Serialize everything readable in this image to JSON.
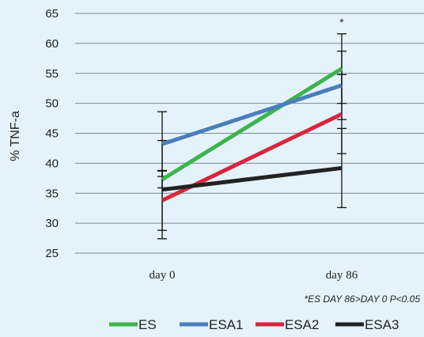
{
  "chart_data": {
    "type": "line",
    "title": "",
    "xlabel": "",
    "ylabel": "% TNF-a",
    "categories": [
      "day 0",
      "day 86"
    ],
    "ylim": [
      25,
      65
    ],
    "yticks": [
      25,
      30,
      35,
      40,
      45,
      50,
      55,
      60,
      65
    ],
    "grid": true,
    "legend_position": "bottom",
    "series": [
      {
        "name": "ES",
        "color": "#3cb44b",
        "values": [
          37.3,
          55.8
        ],
        "error": [
          1.4,
          5.8
        ]
      },
      {
        "name": "ESA1",
        "color": "#4a7ebb",
        "values": [
          43.2,
          53.0
        ],
        "error": [
          5.4,
          5.7
        ]
      },
      {
        "name": "ESA2",
        "color": "#d7263d",
        "values": [
          33.8,
          48.2
        ],
        "error": [
          5.0,
          6.6
        ]
      },
      {
        "name": "ESA3",
        "color": "#222222",
        "values": [
          35.6,
          39.2
        ],
        "error": [
          8.2,
          6.6
        ]
      }
    ],
    "annotations": {
      "star": "*",
      "footnote": "*ES DAY 86>DAY 0  P<0.05"
    }
  }
}
